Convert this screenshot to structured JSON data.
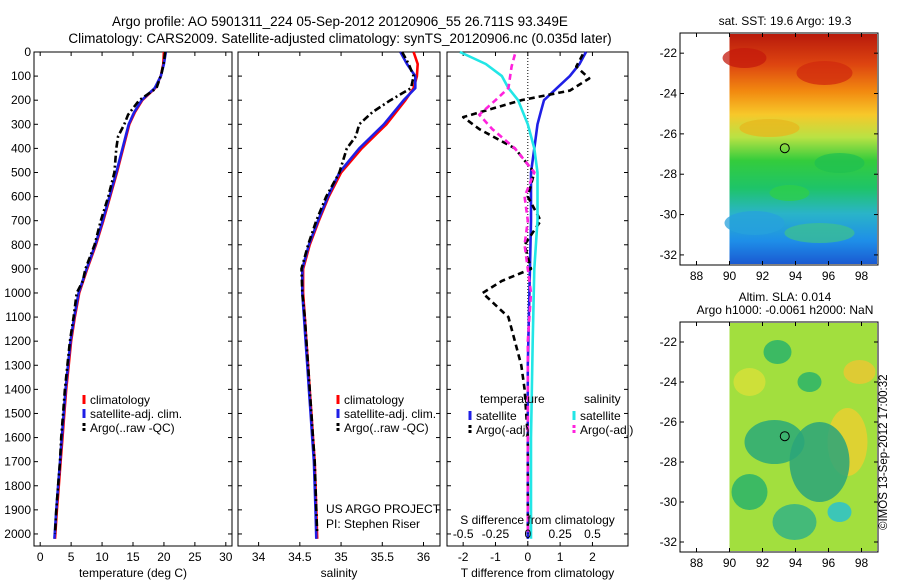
{
  "header": {
    "line1": "Argo profile: AO 5901311_224 05-Sep-2012 20120906_55 26.711S 93.349E",
    "line2": "Climatology: CARS2009. Satellite-adjusted climatology: synTS_20120906.nc (0.035d later)"
  },
  "footer": {
    "vertical_text": "©IMOS 13-Sep-2012 17:00:32"
  },
  "colors": {
    "red": "#ff0000",
    "blue": "#1f1fe6",
    "black": "#000000",
    "magenta": "#ff22dd",
    "cyan": "#22e6e6"
  },
  "chart_data": [
    {
      "type": "line",
      "id": "temperature",
      "xlabel": "temperature (deg C)",
      "xlim": [
        -1,
        31
      ],
      "ylim": [
        0,
        2050
      ],
      "y_reversed": true,
      "xticks": [
        0,
        5,
        10,
        15,
        20,
        25,
        30
      ],
      "yticks": [
        0,
        100,
        200,
        300,
        400,
        500,
        600,
        700,
        800,
        900,
        1000,
        1100,
        1200,
        1300,
        1400,
        1500,
        1600,
        1700,
        1800,
        1900,
        2000
      ],
      "legend": [
        "climatology",
        "satellite-adj. clim.",
        "Argo(..raw -QC)"
      ],
      "series": [
        {
          "name": "climatology",
          "color": "red",
          "style": "solid",
          "points": [
            [
              20.0,
              0
            ],
            [
              19.9,
              50
            ],
            [
              19.5,
              100
            ],
            [
              18.6,
              150
            ],
            [
              16.5,
              200
            ],
            [
              15.3,
              250
            ],
            [
              14.4,
              300
            ],
            [
              13.4,
              400
            ],
            [
              12.4,
              500
            ],
            [
              11.3,
              600
            ],
            [
              10.2,
              700
            ],
            [
              9.0,
              800
            ],
            [
              7.6,
              900
            ],
            [
              6.3,
              1000
            ],
            [
              5.6,
              1100
            ],
            [
              5.0,
              1200
            ],
            [
              4.6,
              1300
            ],
            [
              4.2,
              1400
            ],
            [
              3.9,
              1500
            ],
            [
              3.6,
              1600
            ],
            [
              3.3,
              1700
            ],
            [
              3.0,
              1800
            ],
            [
              2.7,
              1900
            ],
            [
              2.4,
              2020
            ]
          ]
        },
        {
          "name": "satellite-adj. clim.",
          "color": "blue",
          "style": "solid",
          "points": [
            [
              20.3,
              0
            ],
            [
              20.0,
              50
            ],
            [
              19.5,
              100
            ],
            [
              18.5,
              150
            ],
            [
              16.4,
              200
            ],
            [
              15.2,
              250
            ],
            [
              14.3,
              300
            ],
            [
              13.3,
              400
            ],
            [
              12.3,
              500
            ],
            [
              11.2,
              600
            ],
            [
              10.1,
              700
            ],
            [
              8.9,
              800
            ],
            [
              7.5,
              900
            ],
            [
              6.2,
              1000
            ],
            [
              5.5,
              1100
            ],
            [
              4.9,
              1200
            ],
            [
              4.5,
              1300
            ],
            [
              4.1,
              1400
            ],
            [
              3.8,
              1500
            ],
            [
              3.5,
              1600
            ],
            [
              3.2,
              1700
            ],
            [
              2.9,
              1800
            ],
            [
              2.6,
              1900
            ],
            [
              2.3,
              2020
            ]
          ]
        },
        {
          "name": "Argo(..raw -QC)",
          "color": "black",
          "style": "dashdot",
          "points": [
            [
              20.2,
              0
            ],
            [
              20.0,
              40
            ],
            [
              19.6,
              90
            ],
            [
              18.8,
              150
            ],
            [
              16.0,
              200
            ],
            [
              14.2,
              260
            ],
            [
              13.6,
              300
            ],
            [
              12.6,
              350
            ],
            [
              12.3,
              400
            ],
            [
              12.0,
              500
            ],
            [
              11.0,
              600
            ],
            [
              9.8,
              700
            ],
            [
              8.8,
              800
            ],
            [
              7.3,
              900
            ],
            [
              6.9,
              950
            ],
            [
              5.9,
              1000
            ],
            [
              5.4,
              1100
            ],
            [
              4.8,
              1200
            ],
            [
              4.4,
              1300
            ],
            [
              4.0,
              1400
            ],
            [
              3.7,
              1500
            ],
            [
              3.4,
              1600
            ],
            [
              3.2,
              1700
            ],
            [
              2.9,
              1800
            ],
            [
              2.6,
              1900
            ],
            [
              2.4,
              2000
            ]
          ]
        }
      ]
    },
    {
      "type": "line",
      "id": "salinity",
      "xlabel": "salinity",
      "xlim": [
        33.75,
        36.2
      ],
      "ylim": [
        0,
        2050
      ],
      "y_reversed": true,
      "xticks": [
        34,
        34.5,
        35,
        35.5,
        36
      ],
      "xtick_labels": [
        "34",
        "34.5",
        "35",
        "35.5",
        "36"
      ],
      "legend": [
        "climatology",
        "satellite-adj. clim.",
        "Argo(..raw -QC)"
      ],
      "annotation": [
        "US ARGO PROJECT",
        "PI: Stephen Riser"
      ],
      "series": [
        {
          "name": "climatology",
          "color": "red",
          "style": "solid",
          "points": [
            [
              35.88,
              0
            ],
            [
              35.93,
              50
            ],
            [
              35.92,
              100
            ],
            [
              35.88,
              150
            ],
            [
              35.78,
              200
            ],
            [
              35.55,
              300
            ],
            [
              35.25,
              400
            ],
            [
              35.0,
              500
            ],
            [
              34.85,
              600
            ],
            [
              34.73,
              700
            ],
            [
              34.62,
              800
            ],
            [
              34.54,
              900
            ],
            [
              34.54,
              1000
            ],
            [
              34.56,
              1100
            ],
            [
              34.58,
              1200
            ],
            [
              34.6,
              1300
            ],
            [
              34.62,
              1400
            ],
            [
              34.64,
              1500
            ],
            [
              34.66,
              1600
            ],
            [
              34.68,
              1700
            ],
            [
              34.69,
              1800
            ],
            [
              34.7,
              1900
            ],
            [
              34.71,
              2020
            ]
          ]
        },
        {
          "name": "satellite-adj. clim.",
          "color": "blue",
          "style": "solid",
          "points": [
            [
              35.72,
              0
            ],
            [
              35.8,
              50
            ],
            [
              35.9,
              100
            ],
            [
              35.9,
              150
            ],
            [
              35.76,
              200
            ],
            [
              35.52,
              300
            ],
            [
              35.22,
              400
            ],
            [
              34.98,
              500
            ],
            [
              34.84,
              600
            ],
            [
              34.72,
              700
            ],
            [
              34.61,
              800
            ],
            [
              34.53,
              900
            ],
            [
              34.53,
              1000
            ],
            [
              34.55,
              1100
            ],
            [
              34.57,
              1200
            ],
            [
              34.59,
              1300
            ],
            [
              34.61,
              1400
            ],
            [
              34.63,
              1500
            ],
            [
              34.65,
              1600
            ],
            [
              34.67,
              1700
            ],
            [
              34.68,
              1800
            ],
            [
              34.69,
              1900
            ],
            [
              34.7,
              2020
            ]
          ]
        },
        {
          "name": "Argo(..raw -QC)",
          "color": "black",
          "style": "dashdot",
          "points": [
            [
              35.74,
              0
            ],
            [
              35.82,
              50
            ],
            [
              35.88,
              100
            ],
            [
              35.85,
              150
            ],
            [
              35.6,
              200
            ],
            [
              35.38,
              250
            ],
            [
              35.22,
              300
            ],
            [
              35.18,
              350
            ],
            [
              35.07,
              400
            ],
            [
              34.98,
              500
            ],
            [
              34.82,
              600
            ],
            [
              34.7,
              700
            ],
            [
              34.6,
              800
            ],
            [
              34.52,
              900
            ],
            [
              34.53,
              1000
            ],
            [
              34.56,
              1100
            ],
            [
              34.58,
              1200
            ],
            [
              34.6,
              1300
            ],
            [
              34.62,
              1400
            ],
            [
              34.64,
              1500
            ],
            [
              34.66,
              1600
            ],
            [
              34.68,
              1700
            ],
            [
              34.69,
              1800
            ],
            [
              34.7,
              1900
            ],
            [
              34.71,
              2000
            ]
          ]
        }
      ]
    },
    {
      "type": "line",
      "id": "difference",
      "xlabel": "T difference from climatology",
      "xlabel_top": "S difference from climatology",
      "xlim": [
        -2.5,
        3.1
      ],
      "ylim": [
        0,
        2050
      ],
      "y_reversed": true,
      "xticks": [
        -2,
        -1,
        0,
        1,
        2
      ],
      "xticks_top_labels": [
        "-0.5",
        "-0.25",
        "0",
        "0.25",
        "0.5"
      ],
      "legend_groups": [
        {
          "title": "temperature",
          "items": [
            "satellite",
            "Argo(-adj)"
          ]
        },
        {
          "title": "salinity",
          "items": [
            "satellite",
            "Argo(-adj)"
          ]
        }
      ],
      "series": [
        {
          "name": "temperature satellite",
          "color": "blue",
          "style": "solid",
          "points": [
            [
              1.8,
              0
            ],
            [
              1.6,
              50
            ],
            [
              1.3,
              100
            ],
            [
              0.9,
              150
            ],
            [
              0.5,
              200
            ],
            [
              0.4,
              250
            ],
            [
              0.3,
              300
            ],
            [
              0.2,
              400
            ],
            [
              0.1,
              500
            ],
            [
              0.1,
              700
            ],
            [
              0.05,
              1000
            ],
            [
              0.0,
              1300
            ],
            [
              0.0,
              2020
            ]
          ]
        },
        {
          "name": "temperature Argo(-adj)",
          "color": "black",
          "style": "dashed",
          "points": [
            [
              1.7,
              10
            ],
            [
              1.5,
              60
            ],
            [
              1.9,
              110
            ],
            [
              1.3,
              160
            ],
            [
              -0.2,
              200
            ],
            [
              -2.0,
              270
            ],
            [
              -1.5,
              320
            ],
            [
              -0.4,
              400
            ],
            [
              0.2,
              500
            ],
            [
              0.0,
              600
            ],
            [
              0.4,
              700
            ],
            [
              -0.1,
              800
            ],
            [
              0.1,
              900
            ],
            [
              -0.8,
              950
            ],
            [
              -1.4,
              1000
            ],
            [
              -0.6,
              1100
            ],
            [
              -0.4,
              1200
            ],
            [
              -0.2,
              1300
            ],
            [
              -0.1,
              1400
            ],
            [
              0.0,
              1600
            ],
            [
              0.0,
              2000
            ]
          ]
        },
        {
          "name": "salinity satellite",
          "color": "cyan",
          "style": "solid",
          "points": [
            [
              -2.1,
              0
            ],
            [
              -1.3,
              50
            ],
            [
              -0.8,
              100
            ],
            [
              -0.6,
              150
            ],
            [
              -0.3,
              200
            ],
            [
              0.0,
              300
            ],
            [
              0.2,
              400
            ],
            [
              0.3,
              500
            ],
            [
              0.3,
              700
            ],
            [
              0.2,
              900
            ],
            [
              0.15,
              1200
            ],
            [
              0.1,
              1600
            ],
            [
              0.1,
              2020
            ]
          ]
        },
        {
          "name": "salinity Argo(-adj)",
          "color": "magenta",
          "style": "dashed",
          "points": [
            [
              -0.4,
              10
            ],
            [
              -0.5,
              60
            ],
            [
              -0.6,
              150
            ],
            [
              -1.0,
              200
            ],
            [
              -1.5,
              260
            ],
            [
              -1.1,
              320
            ],
            [
              -0.4,
              400
            ],
            [
              0.2,
              500
            ],
            [
              -0.1,
              600
            ],
            [
              0.0,
              700
            ],
            [
              -0.1,
              800
            ],
            [
              0.0,
              900
            ],
            [
              0.1,
              1000
            ],
            [
              0.0,
              1200
            ],
            [
              0.0,
              1600
            ],
            [
              0.0,
              2000
            ]
          ]
        }
      ]
    },
    {
      "type": "heatmap",
      "id": "sst-map",
      "title": "sat. SST: 19.6  Argo: 19.3",
      "xlim": [
        87,
        99
      ],
      "ylim": [
        -32.5,
        -21
      ],
      "xticks": [
        88,
        90,
        92,
        94,
        96,
        98
      ],
      "yticks": [
        -22,
        -24,
        -26,
        -28,
        -30,
        -32
      ],
      "data_xlim": [
        90,
        99
      ],
      "marker": {
        "lon": 93.35,
        "lat": -26.71
      }
    },
    {
      "type": "heatmap",
      "id": "sla-map",
      "title": [
        "Altim. SLA: 0.014",
        "Argo h1000: -0.0061  h2000: NaN"
      ],
      "xlim": [
        87,
        99
      ],
      "ylim": [
        -32.5,
        -21
      ],
      "xticks": [
        88,
        90,
        92,
        94,
        96,
        98
      ],
      "yticks": [
        -22,
        -24,
        -26,
        -28,
        -30,
        -32
      ],
      "data_xlim": [
        90,
        99
      ],
      "marker": {
        "lon": 93.35,
        "lat": -26.71
      }
    }
  ]
}
